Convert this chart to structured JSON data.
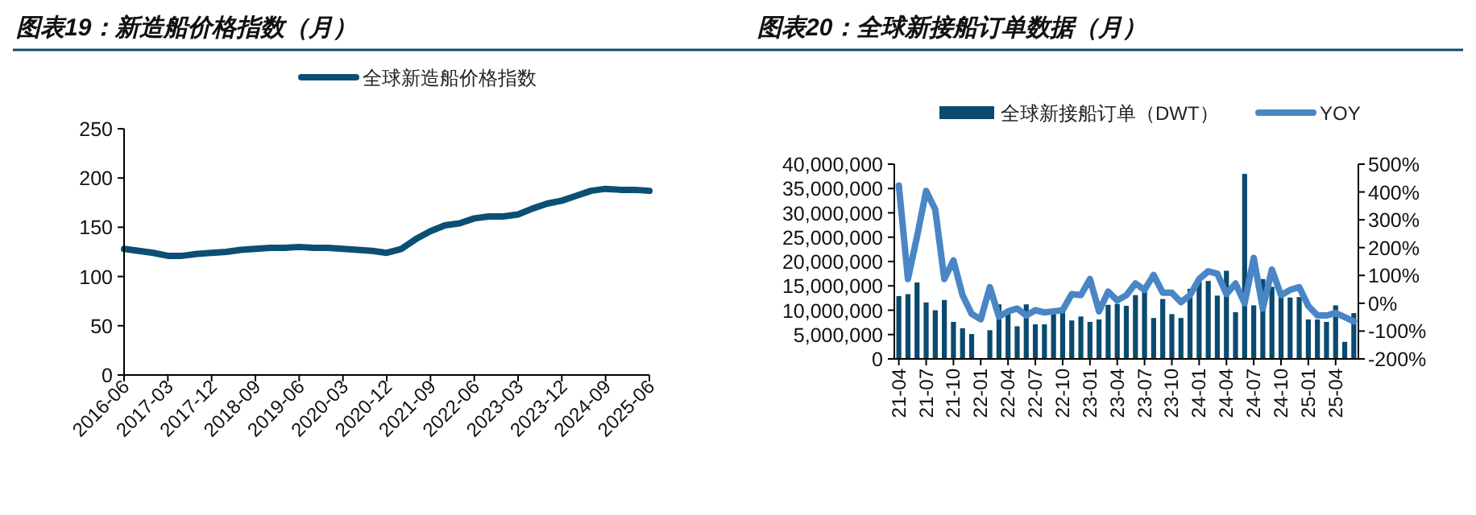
{
  "chart_data": [
    {
      "type": "line",
      "title": "图表19：新造船价格指数（月）",
      "legend": "top",
      "grid": false,
      "series": [
        {
          "name": "全球新造船价格指数",
          "color": "#0b4f74",
          "x": [
            "2016-06",
            "2016-09",
            "2016-12",
            "2017-03",
            "2017-06",
            "2017-09",
            "2017-12",
            "2018-03",
            "2018-06",
            "2018-09",
            "2018-12",
            "2019-03",
            "2019-06",
            "2019-09",
            "2019-12",
            "2020-03",
            "2020-06",
            "2020-09",
            "2020-12",
            "2021-03",
            "2021-06",
            "2021-09",
            "2021-12",
            "2022-03",
            "2022-06",
            "2022-09",
            "2022-12",
            "2023-03",
            "2023-06",
            "2023-09",
            "2023-12",
            "2024-03",
            "2024-06",
            "2024-09",
            "2024-12",
            "2025-03",
            "2025-06"
          ],
          "values": [
            128,
            126,
            124,
            121,
            121,
            123,
            124,
            125,
            127,
            128,
            129,
            129,
            130,
            129,
            129,
            128,
            127,
            126,
            124,
            128,
            138,
            146,
            152,
            154,
            159,
            161,
            161,
            163,
            169,
            174,
            177,
            182,
            187,
            189,
            188,
            188,
            187
          ]
        }
      ],
      "xlim": [
        "2016-06",
        "2025-06"
      ],
      "xticks": [
        "2016-06",
        "2017-03",
        "2017-12",
        "2018-09",
        "2019-06",
        "2020-03",
        "2020-12",
        "2021-09",
        "2022-06",
        "2023-03",
        "2023-12",
        "2024-09",
        "2025-06"
      ],
      "ylim": [
        0,
        250
      ],
      "yticks": [
        0,
        50,
        100,
        150,
        200,
        250
      ]
    },
    {
      "type": "bar",
      "title": "图表20：全球新接船订单数据（月）",
      "legend": "top",
      "grid": false,
      "categories": [
        "21-04",
        null,
        null,
        "21-07",
        null,
        null,
        "21-10",
        null,
        null,
        "22-01",
        null,
        null,
        "22-04",
        null,
        null,
        "22-07",
        null,
        null,
        "22-10",
        null,
        null,
        "23-01",
        null,
        null,
        "23-04",
        null,
        null,
        "23-07",
        null,
        null,
        "23-10",
        null,
        null,
        "24-01",
        null,
        null,
        "24-04",
        null,
        null,
        "24-07",
        null,
        null,
        "24-10",
        null,
        null,
        "25-01",
        null,
        null,
        "25-04",
        null,
        null
      ],
      "series": [
        {
          "name": "全球新接船订单（DWT）",
          "type": "bar",
          "color": "#0b4a6f",
          "values": [
            12900000,
            13300000,
            15700000,
            11600000,
            10000000,
            12100000,
            7600000,
            6300000,
            5100000,
            null,
            5900000,
            11200000,
            9800000,
            6700000,
            11200000,
            7100000,
            7100000,
            9200000,
            9600000,
            7900000,
            8700000,
            7600000,
            8100000,
            11100000,
            11300000,
            10900000,
            13100000,
            14200000,
            8400000,
            12300000,
            9200000,
            8400000,
            14400000,
            15800000,
            16000000,
            13000000,
            18100000,
            9600000,
            38000000,
            11000000,
            16400000,
            14800000,
            12600000,
            12600000,
            12700000,
            8100000,
            8100000,
            7600000,
            11000000,
            3500000,
            9400000
          ]
        },
        {
          "name": "YOY",
          "type": "line",
          "axis": "y2",
          "color": "#4a86c5",
          "values": [
            423,
            87,
            240,
            404,
            337,
            87,
            154,
            29,
            -38,
            -58,
            58,
            -48,
            -29,
            -19,
            -44,
            -25,
            -33,
            -29,
            -25,
            33,
            29,
            87,
            -29,
            42,
            10,
            29,
            71,
            48,
            102,
            38,
            38,
            4,
            29,
            87,
            115,
            106,
            33,
            71,
            0,
            163,
            -19,
            121,
            29,
            48,
            58,
            -10,
            -44,
            -44,
            -35,
            -50,
            -65
          ]
        }
      ],
      "ylim": [
        0,
        40000000
      ],
      "yticks": [
        {
          "value": 0,
          "label": "0"
        },
        {
          "value": 5000000,
          "label": "5,000,000"
        },
        {
          "value": 10000000,
          "label": "10,000,000"
        },
        {
          "value": 15000000,
          "label": "15,000,000"
        },
        {
          "value": 20000000,
          "label": "20,000,000"
        },
        {
          "value": 25000000,
          "label": "25,000,000"
        },
        {
          "value": 30000000,
          "label": "30,000,000"
        },
        {
          "value": 35000000,
          "label": "35,000,000"
        },
        {
          "value": 40000000,
          "label": "40,000,000"
        }
      ],
      "y2lim": [
        -200,
        500
      ],
      "y2ticks": [
        {
          "value": -200,
          "label": "-200%"
        },
        {
          "value": -100,
          "label": "-100%"
        },
        {
          "value": 0,
          "label": "0%"
        },
        {
          "value": 100,
          "label": "100%"
        },
        {
          "value": 200,
          "label": "200%"
        },
        {
          "value": 300,
          "label": "300%"
        },
        {
          "value": 400,
          "label": "400%"
        },
        {
          "value": 500,
          "label": "500%"
        }
      ]
    }
  ]
}
